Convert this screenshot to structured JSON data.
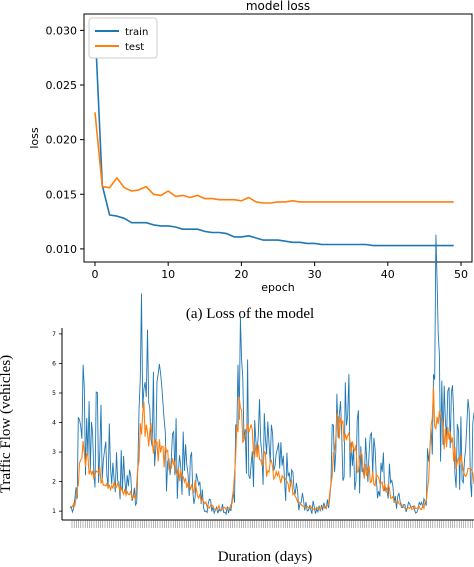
{
  "figure": {
    "caption_a": "(a)   Loss of the model",
    "caption_b_xlabel": "Duration (days)",
    "caption_b_ylabel": "Traffic Flow (vehicles)"
  },
  "chart_data": [
    {
      "type": "line",
      "title": "model loss",
      "xlabel": "epoch",
      "ylabel": "loss",
      "xlim": [
        -1.5,
        51.5
      ],
      "ylim": [
        0.0088,
        0.0315
      ],
      "xticks": [
        0,
        10,
        20,
        30,
        40,
        50
      ],
      "yticks": [
        0.01,
        0.015,
        0.02,
        0.025,
        0.03
      ],
      "ytick_labels": [
        "0.010",
        "0.015",
        "0.020",
        "0.025",
        "0.030"
      ],
      "legend_placement": "top-left",
      "x": [
        0,
        1,
        2,
        3,
        4,
        5,
        6,
        7,
        8,
        9,
        10,
        11,
        12,
        13,
        14,
        15,
        16,
        17,
        18,
        19,
        20,
        21,
        22,
        23,
        24,
        25,
        26,
        27,
        28,
        29,
        30,
        31,
        32,
        33,
        34,
        35,
        36,
        37,
        38,
        39,
        40,
        41,
        42,
        43,
        44,
        45,
        46,
        47,
        48,
        49
      ],
      "series": [
        {
          "name": "train",
          "color": "#1f77b4",
          "values": [
            0.0305,
            0.0158,
            0.0131,
            0.013,
            0.0128,
            0.0124,
            0.0124,
            0.0124,
            0.0122,
            0.0121,
            0.0121,
            0.012,
            0.0118,
            0.0118,
            0.0118,
            0.0116,
            0.0115,
            0.0115,
            0.0114,
            0.0111,
            0.0111,
            0.0112,
            0.011,
            0.0108,
            0.0108,
            0.0108,
            0.0107,
            0.0106,
            0.0106,
            0.0105,
            0.0105,
            0.0104,
            0.0104,
            0.0104,
            0.0104,
            0.0104,
            0.0104,
            0.0104,
            0.0103,
            0.0103,
            0.0103,
            0.0103,
            0.0103,
            0.0103,
            0.0103,
            0.0103,
            0.0103,
            0.0103,
            0.0103,
            0.0103
          ]
        },
        {
          "name": "test",
          "color": "#ff7f0e",
          "values": [
            0.0225,
            0.0157,
            0.0156,
            0.0165,
            0.0156,
            0.0153,
            0.0154,
            0.0157,
            0.015,
            0.0149,
            0.0153,
            0.0148,
            0.0149,
            0.0147,
            0.0149,
            0.0146,
            0.0146,
            0.0145,
            0.0145,
            0.0145,
            0.0144,
            0.0147,
            0.0143,
            0.0142,
            0.0142,
            0.0143,
            0.0143,
            0.0144,
            0.0143,
            0.0143,
            0.0143,
            0.0143,
            0.0143,
            0.0143,
            0.0143,
            0.0143,
            0.0143,
            0.0143,
            0.0143,
            0.0143,
            0.0143,
            0.0143,
            0.0143,
            0.0143,
            0.0143,
            0.0143,
            0.0143,
            0.0143,
            0.0143,
            0.0143
          ]
        }
      ]
    },
    {
      "type": "line",
      "title": "",
      "xlabel": "Duration (days)",
      "ylabel": "Traffic Flow (vehicles)",
      "ylim": [
        0.7,
        7.2
      ],
      "yticks": [
        1,
        2,
        3,
        4,
        5,
        6,
        7
      ],
      "ytick_labels": [
        "1",
        "2",
        "3",
        "4",
        "5",
        "6",
        "7"
      ],
      "series": [
        {
          "name": "",
          "color": "#1f77b4",
          "peaks": [
            {
              "center": 0.03,
              "height": 4.6
            },
            {
              "center": 0.18,
              "height": 5.7
            },
            {
              "center": 0.42,
              "height": 5.1
            },
            {
              "center": 0.66,
              "height": 5.1
            },
            {
              "center": 0.9,
              "height": 6.9
            }
          ],
          "baseline": 1.1
        },
        {
          "name": "",
          "color": "#ff7f0e",
          "peaks": [
            {
              "center": 0.03,
              "height": 3.0
            },
            {
              "center": 0.18,
              "height": 4.4
            },
            {
              "center": 0.42,
              "height": 4.3
            },
            {
              "center": 0.66,
              "height": 4.1
            },
            {
              "center": 0.9,
              "height": 4.5
            }
          ],
          "baseline": 1.1
        }
      ]
    }
  ]
}
